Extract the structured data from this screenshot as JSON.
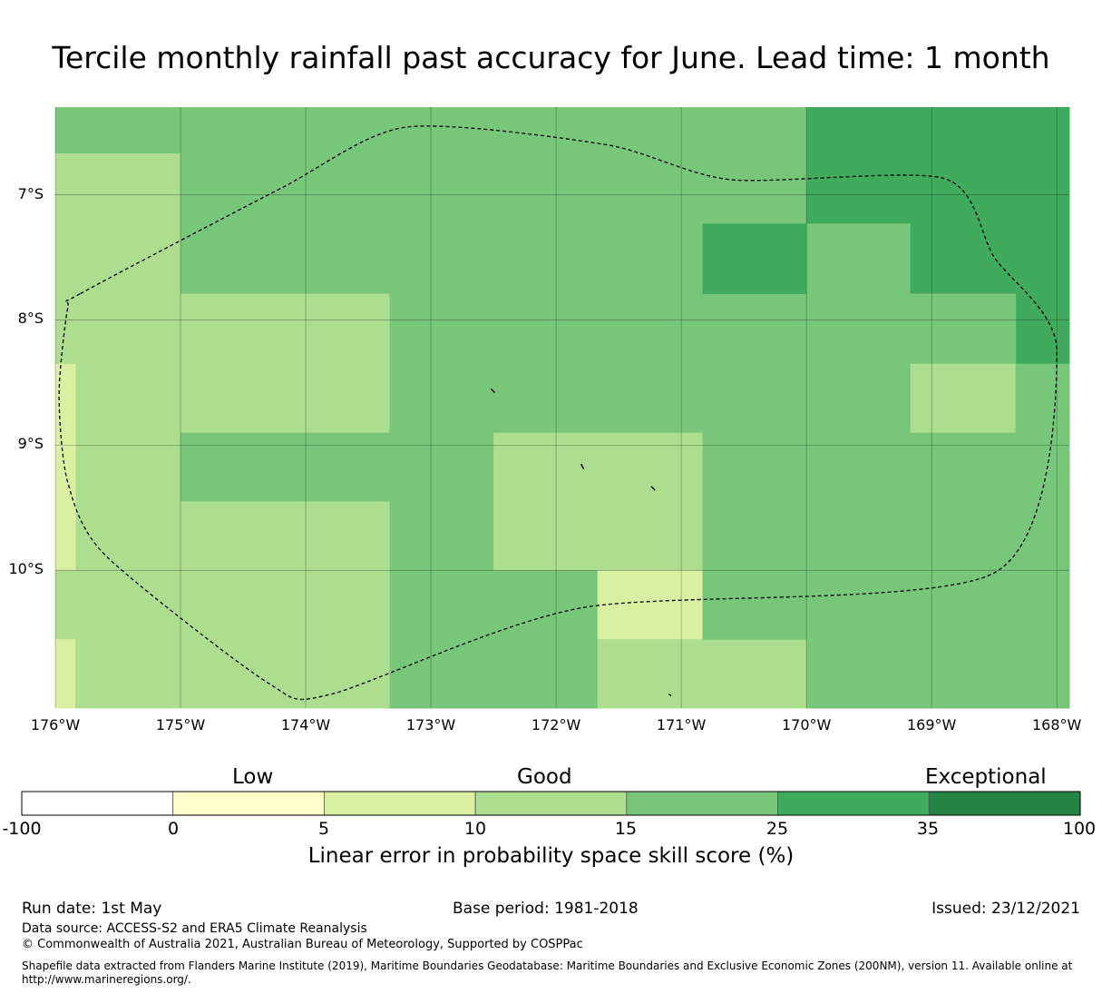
{
  "title": "Tercile monthly rainfall past accuracy for June. Lead time: 1 month",
  "colors": {
    "c_m100_0": "#ffffff",
    "c_0_5": "#ffffcc",
    "c_5_10": "#d9f0a3",
    "c_10_15": "#addd8e",
    "c_15_25": "#78c679",
    "c_25_35": "#41ab5d",
    "c_35_100": "#238443"
  },
  "map": {
    "lon_range": [
      -176,
      -167.9
    ],
    "lat_range": [
      -6.3,
      -11.1
    ],
    "lat_ticks": [
      {
        "value": -7,
        "label": "7°S"
      },
      {
        "value": -8,
        "label": "8°S"
      },
      {
        "value": -9,
        "label": "9°S"
      },
      {
        "value": -10,
        "label": "10°S"
      }
    ],
    "lon_ticks": [
      {
        "value": -176,
        "label": "176°W"
      },
      {
        "value": -175,
        "label": "175°W"
      },
      {
        "value": -174,
        "label": "174°W"
      },
      {
        "value": -173,
        "label": "173°W"
      },
      {
        "value": -172,
        "label": "172°W"
      },
      {
        "value": -171,
        "label": "171°W"
      },
      {
        "value": -170,
        "label": "170°W"
      },
      {
        "value": -169,
        "label": "169°W"
      },
      {
        "value": -168,
        "label": "168°W"
      }
    ],
    "cells": [
      {
        "lon": [
          -176,
          -175
        ],
        "lat": [
          -6.3,
          -6.67
        ],
        "color": "c_15_25"
      },
      {
        "lon": [
          -176,
          -175
        ],
        "lat": [
          -6.67,
          -10.0
        ],
        "color": "c_10_15"
      },
      {
        "lon": [
          -176,
          -175.84
        ],
        "lat": [
          -8.35,
          -10.0
        ],
        "color": "c_5_10"
      },
      {
        "lon": [
          -176,
          -175
        ],
        "lat": [
          -10.0,
          -10.55
        ],
        "color": "c_10_15"
      },
      {
        "lon": [
          -176,
          -175.84
        ],
        "lat": [
          -10.55,
          -11.1
        ],
        "color": "c_5_10"
      },
      {
        "lon": [
          -175.84,
          -175
        ],
        "lat": [
          -10.55,
          -11.1
        ],
        "color": "c_10_15"
      },
      {
        "lon": [
          -175,
          -170
        ],
        "lat": [
          -6.3,
          -7.79
        ],
        "color": "c_15_25"
      },
      {
        "lon": [
          -175,
          -173.33
        ],
        "lat": [
          -7.79,
          -8.9
        ],
        "color": "c_10_15"
      },
      {
        "lon": [
          -173.33,
          -170
        ],
        "lat": [
          -7.79,
          -8.9
        ],
        "color": "c_15_25"
      },
      {
        "lon": [
          -175,
          -172.5
        ],
        "lat": [
          -8.9,
          -9.45
        ],
        "color": "c_15_25"
      },
      {
        "lon": [
          -175,
          -173.33
        ],
        "lat": [
          -9.45,
          -11.1
        ],
        "color": "c_10_15"
      },
      {
        "lon": [
          -173.33,
          -172.5
        ],
        "lat": [
          -9.45,
          -11.1
        ],
        "color": "c_15_25"
      },
      {
        "lon": [
          -172.5,
          -170.83
        ],
        "lat": [
          -8.9,
          -10.0
        ],
        "color": "c_10_15"
      },
      {
        "lon": [
          -172.5,
          -171.67
        ],
        "lat": [
          -10.0,
          -11.1
        ],
        "color": "c_15_25"
      },
      {
        "lon": [
          -171.67,
          -170.83
        ],
        "lat": [
          -10.0,
          -10.55
        ],
        "color": "c_5_10"
      },
      {
        "lon": [
          -171.67,
          -170.0
        ],
        "lat": [
          -10.55,
          -11.1
        ],
        "color": "c_10_15"
      },
      {
        "lon": [
          -170.83,
          -170
        ],
        "lat": [
          -7.23,
          -7.79
        ],
        "color": "c_25_35"
      },
      {
        "lon": [
          -170.83,
          -170
        ],
        "lat": [
          -8.9,
          -10.55
        ],
        "color": "c_15_25"
      },
      {
        "lon": [
          -170,
          -168.33
        ],
        "lat": [
          -6.3,
          -7.23
        ],
        "color": "c_25_35"
      },
      {
        "lon": [
          -170,
          -169.17
        ],
        "lat": [
          -7.23,
          -7.79
        ],
        "color": "c_15_25"
      },
      {
        "lon": [
          -169.17,
          -168.33
        ],
        "lat": [
          -7.23,
          -7.79
        ],
        "color": "c_25_35"
      },
      {
        "lon": [
          -168.33,
          -167.9
        ],
        "lat": [
          -6.3,
          -8.35
        ],
        "color": "c_25_35"
      },
      {
        "lon": [
          -170,
          -168.33
        ],
        "lat": [
          -7.79,
          -8.35
        ],
        "color": "c_15_25"
      },
      {
        "lon": [
          -170,
          -169.17
        ],
        "lat": [
          -8.35,
          -8.9
        ],
        "color": "c_15_25"
      },
      {
        "lon": [
          -169.17,
          -168.33
        ],
        "lat": [
          -8.35,
          -8.9
        ],
        "color": "c_10_15"
      },
      {
        "lon": [
          -168.33,
          -167.9
        ],
        "lat": [
          -8.35,
          -8.9
        ],
        "color": "c_15_25"
      },
      {
        "lon": [
          -170,
          -167.9
        ],
        "lat": [
          -8.9,
          -11.1
        ],
        "color": "c_15_25"
      }
    ],
    "eez_boundary": [
      [
        -175.8,
        -7.79
      ],
      [
        -174.2,
        -6.95
      ],
      [
        -173.2,
        -6.46
      ],
      [
        -171.6,
        -6.6
      ],
      [
        -170.6,
        -6.88
      ],
      [
        -168.9,
        -6.87
      ],
      [
        -168.5,
        -7.5
      ],
      [
        -168.0,
        -8.25
      ],
      [
        -168.5,
        -10.02
      ],
      [
        -171.8,
        -10.3
      ],
      [
        -173.8,
        -10.99
      ],
      [
        -174.3,
        -10.9
      ],
      [
        -175.6,
        -9.88
      ],
      [
        -175.9,
        -9.3
      ],
      [
        -175.97,
        -8.6
      ],
      [
        -175.9,
        -7.9
      ]
    ],
    "islands": [
      [
        [
          -172.52,
          -8.55
        ],
        [
          -172.49,
          -8.58
        ]
      ],
      [
        [
          -171.8,
          -9.15
        ],
        [
          -171.78,
          -9.19
        ]
      ],
      [
        [
          -171.24,
          -9.33
        ],
        [
          -171.21,
          -9.36
        ]
      ],
      [
        [
          -171.1,
          -10.99
        ],
        [
          -171.08,
          -11.0
        ]
      ]
    ]
  },
  "colorbar": {
    "category_labels": [
      "Low",
      "Good",
      "Exceptional"
    ],
    "ticks": [
      "-100",
      "0",
      "5",
      "10",
      "15",
      "25",
      "35",
      "100"
    ],
    "segment_colors": [
      "c_m100_0",
      "c_0_5",
      "c_5_10",
      "c_10_15",
      "c_15_25",
      "c_25_35",
      "c_35_100"
    ],
    "title": "Linear error in probability space skill score (%)"
  },
  "footer": {
    "run_date": "Run date: 1st May",
    "base_period": "Base period: 1981-2018",
    "issued": "Issued: 23/12/2021",
    "data_source": "Data source: ACCESS-S2 and ERA5 Climate Reanalysis",
    "copyright": "© Commonwealth of Australia 2021, Australian Bureau of Meteorology, Supported by COSPPac",
    "shapefile_line1": "Shapefile data extracted from Flanders Marine Institute (2019), Maritime Boundaries Geodatabase: Maritime Boundaries and Exclusive Economic Zones (200NM), version 11. Available online at",
    "shapefile_line2": "http://www.marineregions.org/."
  }
}
